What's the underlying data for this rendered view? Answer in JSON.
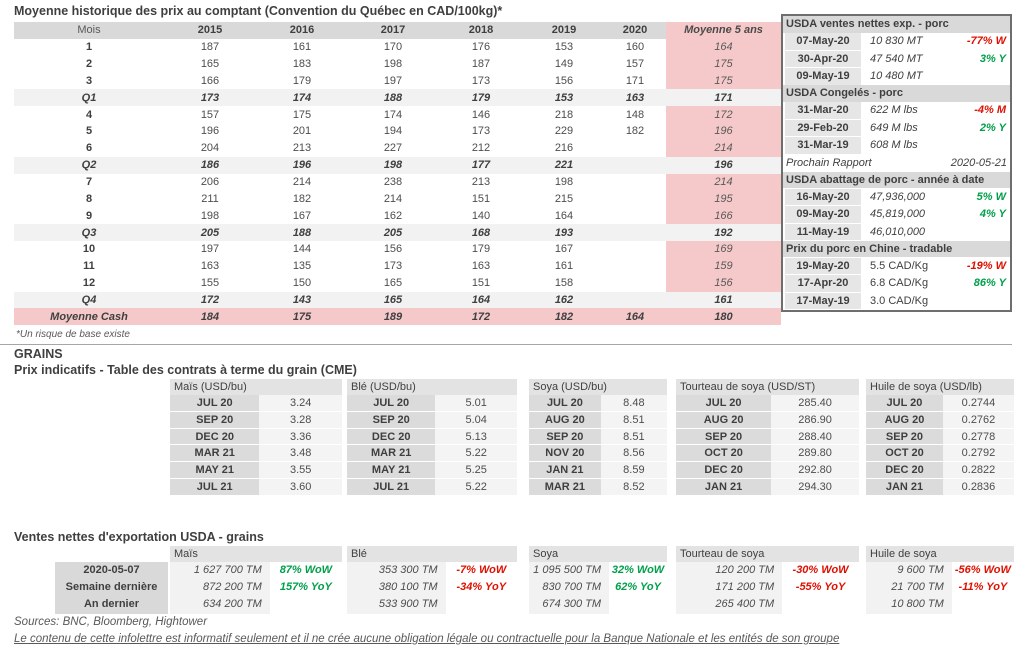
{
  "pork": {
    "title": "Moyenne historique des prix au comptant (Convention du Québec en CAD/100kg)*",
    "headers": [
      "Mois",
      "2015",
      "2016",
      "2017",
      "2018",
      "2019",
      "2020",
      "Moyenne 5 ans"
    ],
    "rows": [
      {
        "label": "1",
        "type": "month",
        "values": [
          "187",
          "161",
          "170",
          "176",
          "153",
          "160",
          "164"
        ]
      },
      {
        "label": "2",
        "type": "month",
        "values": [
          "165",
          "183",
          "198",
          "187",
          "149",
          "157",
          "175"
        ]
      },
      {
        "label": "3",
        "type": "month",
        "values": [
          "166",
          "179",
          "197",
          "173",
          "156",
          "171",
          "175"
        ]
      },
      {
        "label": "Q1",
        "type": "quarter",
        "values": [
          "173",
          "174",
          "188",
          "179",
          "153",
          "163",
          "171"
        ]
      },
      {
        "label": "4",
        "type": "month",
        "values": [
          "157",
          "175",
          "174",
          "146",
          "218",
          "148",
          "172"
        ]
      },
      {
        "label": "5",
        "type": "month",
        "values": [
          "196",
          "201",
          "194",
          "173",
          "229",
          "182",
          "196"
        ]
      },
      {
        "label": "6",
        "type": "month",
        "values": [
          "204",
          "213",
          "227",
          "212",
          "216",
          "",
          "214"
        ]
      },
      {
        "label": "Q2",
        "type": "quarter",
        "values": [
          "186",
          "196",
          "198",
          "177",
          "221",
          "",
          "196"
        ]
      },
      {
        "label": "7",
        "type": "month",
        "values": [
          "206",
          "214",
          "238",
          "213",
          "198",
          "",
          "214"
        ]
      },
      {
        "label": "8",
        "type": "month",
        "values": [
          "211",
          "182",
          "214",
          "151",
          "215",
          "",
          "195"
        ]
      },
      {
        "label": "9",
        "type": "month",
        "values": [
          "198",
          "167",
          "162",
          "140",
          "164",
          "",
          "166"
        ]
      },
      {
        "label": "Q3",
        "type": "quarter",
        "values": [
          "205",
          "188",
          "205",
          "168",
          "193",
          "",
          "192"
        ]
      },
      {
        "label": "10",
        "type": "month",
        "values": [
          "197",
          "144",
          "156",
          "179",
          "167",
          "",
          "169"
        ]
      },
      {
        "label": "11",
        "type": "month",
        "values": [
          "163",
          "135",
          "173",
          "163",
          "161",
          "",
          "159"
        ]
      },
      {
        "label": "12",
        "type": "month",
        "values": [
          "155",
          "150",
          "165",
          "151",
          "158",
          "",
          "156"
        ]
      },
      {
        "label": "Q4",
        "type": "quarter",
        "values": [
          "172",
          "143",
          "165",
          "164",
          "162",
          "",
          "161"
        ]
      },
      {
        "label": "Moyenne Cash",
        "type": "cash",
        "values": [
          "184",
          "175",
          "189",
          "172",
          "182",
          "164",
          "180"
        ]
      }
    ],
    "footnote": "*Un risque de base existe"
  },
  "usda_panel": {
    "blocks": [
      {
        "type": "header",
        "text": "USDA ventes nettes exp. - porc"
      },
      {
        "type": "row",
        "date": "07-May-20",
        "value": "10 830 MT",
        "pct": "-77% W",
        "dir": "neg"
      },
      {
        "type": "row",
        "date": "30-Apr-20",
        "value": "47 540 MT",
        "pct": "3% Y",
        "dir": "pos"
      },
      {
        "type": "row",
        "date": "09-May-19",
        "value": "10 480 MT",
        "pct": "",
        "dir": ""
      },
      {
        "type": "header",
        "text": "USDA Congelés - porc"
      },
      {
        "type": "row",
        "date": "31-Mar-20",
        "value": "622 M lbs",
        "pct": "-4% M",
        "dir": "neg"
      },
      {
        "type": "row",
        "date": "29-Feb-20",
        "value": "649 M lbs",
        "pct": "2% Y",
        "dir": "pos"
      },
      {
        "type": "row",
        "date": "31-Mar-19",
        "value": "608 M lbs",
        "pct": "",
        "dir": ""
      },
      {
        "type": "note",
        "label": "Prochain Rapport",
        "value": "2020-05-21"
      },
      {
        "type": "header",
        "text": "USDA abattage de porc - année à date"
      },
      {
        "type": "row",
        "date": "16-May-20",
        "value": "47,936,000",
        "pct": "5% W",
        "dir": "pos"
      },
      {
        "type": "row",
        "date": "09-May-20",
        "value": "45,819,000",
        "pct": "4% Y",
        "dir": "pos"
      },
      {
        "type": "row",
        "date": "11-May-19",
        "value": "46,010,000",
        "pct": "",
        "dir": ""
      },
      {
        "type": "header",
        "text": "Prix du porc en Chine - tradable"
      },
      {
        "type": "row",
        "date": "19-May-20",
        "value": "5.5 CAD/Kg",
        "pct": "-19% W",
        "dir": "neg",
        "upright": true
      },
      {
        "type": "row",
        "date": "17-Apr-20",
        "value": "6.8 CAD/Kg",
        "pct": "86% Y",
        "dir": "pos",
        "upright": true
      },
      {
        "type": "row",
        "date": "17-May-19",
        "value": "3.0 CAD/Kg",
        "pct": "",
        "dir": "",
        "upright": true
      }
    ]
  },
  "grains": {
    "section_title": "GRAINS",
    "futures_title": "Prix indicatifs - Table des contrats à terme du grain (CME)",
    "futures_groups": [
      {
        "name": "Maïs (USD/bu)",
        "rows": [
          [
            "JUL 20",
            "3.24"
          ],
          [
            "SEP 20",
            "3.28"
          ],
          [
            "DEC 20",
            "3.36"
          ],
          [
            "MAR 21",
            "3.48"
          ],
          [
            "MAY 21",
            "3.55"
          ],
          [
            "JUL 21",
            "3.60"
          ]
        ]
      },
      {
        "name": "Blé (USD/bu)",
        "rows": [
          [
            "JUL 20",
            "5.01"
          ],
          [
            "SEP 20",
            "5.04"
          ],
          [
            "DEC 20",
            "5.13"
          ],
          [
            "MAR 21",
            "5.22"
          ],
          [
            "MAY 21",
            "5.25"
          ],
          [
            "JUL 21",
            "5.22"
          ]
        ]
      },
      {
        "name": "Soya (USD/bu)",
        "rows": [
          [
            "JUL 20",
            "8.48"
          ],
          [
            "AUG 20",
            "8.51"
          ],
          [
            "SEP 20",
            "8.51"
          ],
          [
            "NOV 20",
            "8.56"
          ],
          [
            "JAN 21",
            "8.59"
          ],
          [
            "MAR 21",
            "8.52"
          ]
        ]
      },
      {
        "name": "Tourteau de soya (USD/ST)",
        "rows": [
          [
            "JUL 20",
            "285.40"
          ],
          [
            "AUG 20",
            "286.90"
          ],
          [
            "SEP 20",
            "288.40"
          ],
          [
            "OCT 20",
            "289.80"
          ],
          [
            "DEC 20",
            "292.80"
          ],
          [
            "JAN 21",
            "294.30"
          ]
        ]
      },
      {
        "name": "Huile de soya (USD/lb)",
        "rows": [
          [
            "JUL 20",
            "0.2744"
          ],
          [
            "AUG 20",
            "0.2762"
          ],
          [
            "SEP 20",
            "0.2778"
          ],
          [
            "OCT 20",
            "0.2792"
          ],
          [
            "DEC 20",
            "0.2822"
          ],
          [
            "JAN 21",
            "0.2836"
          ]
        ]
      }
    ]
  },
  "exports": {
    "title": "Ventes nettes d'exportation USDA - grains",
    "row_labels": [
      "2020-05-07",
      "Semaine dernière",
      "An dernier"
    ],
    "groups": [
      {
        "name": "Maïs",
        "cells": [
          {
            "v": "1 627 700 TM",
            "p": "87% WoW",
            "dir": "pos"
          },
          {
            "v": "872 200 TM",
            "p": "157% YoY",
            "dir": "pos"
          },
          {
            "v": "634 200 TM",
            "p": "",
            "dir": ""
          }
        ]
      },
      {
        "name": "Blé",
        "cells": [
          {
            "v": "353 300 TM",
            "p": "-7% WoW",
            "dir": "neg"
          },
          {
            "v": "380 100 TM",
            "p": "-34% YoY",
            "dir": "neg"
          },
          {
            "v": "533 900 TM",
            "p": "",
            "dir": ""
          }
        ]
      },
      {
        "name": "Soya",
        "cells": [
          {
            "v": "1 095 500 TM",
            "p": "32% WoW",
            "dir": "pos"
          },
          {
            "v": "830 700 TM",
            "p": "62% YoY",
            "dir": "pos"
          },
          {
            "v": "674 300 TM",
            "p": "",
            "dir": ""
          }
        ]
      },
      {
        "name": "Tourteau de soya",
        "cells": [
          {
            "v": "120 200 TM",
            "p": "-30% WoW",
            "dir": "neg"
          },
          {
            "v": "171 200 TM",
            "p": "-55% YoY",
            "dir": "neg"
          },
          {
            "v": "265 400 TM",
            "p": "",
            "dir": ""
          }
        ]
      },
      {
        "name": "Huile de soya",
        "cells": [
          {
            "v": "9 600 TM",
            "p": "-56% WoW",
            "dir": "neg"
          },
          {
            "v": "21 700 TM",
            "p": "-11% YoY",
            "dir": "neg"
          },
          {
            "v": "10 800 TM",
            "p": "",
            "dir": ""
          }
        ]
      }
    ]
  },
  "footer": {
    "sources": "Sources: BNC, Bloomberg, Hightower",
    "disclaimer": "Le contenu de cette infolettre est informatif seulement et il ne crée aucune obligation légale ou contractuelle pour la Banque Nationale et les entités de son groupe"
  },
  "colors": {
    "negative_text": "#e01000",
    "positive_text": "#00a04a",
    "pink_highlight": "#f5c9c9",
    "header_gray": "#d9d9d9"
  }
}
